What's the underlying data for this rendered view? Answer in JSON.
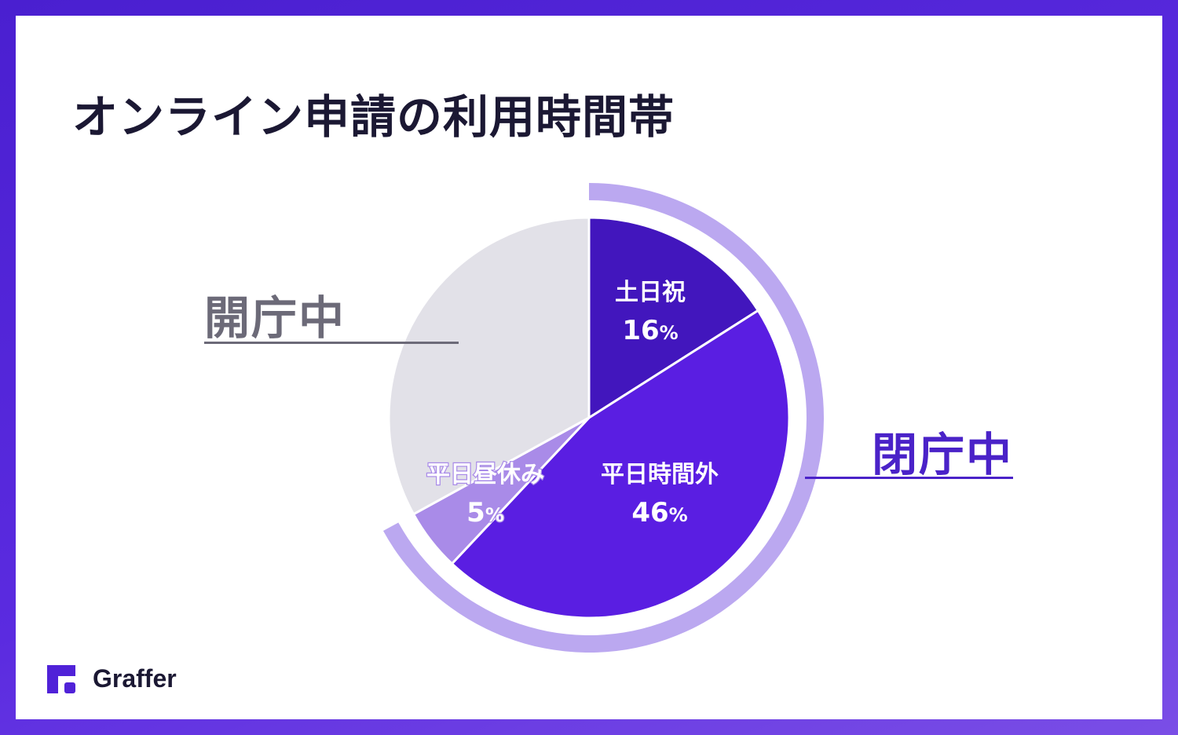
{
  "title": "オンライン申請の利用時間帯",
  "chart_data": {
    "type": "pie",
    "categories": [
      "土日祝",
      "平日時間外",
      "平日昼休み",
      "開庁中"
    ],
    "values": [
      16,
      46,
      5,
      33
    ],
    "value_labels": [
      "16",
      "46",
      "5",
      ""
    ],
    "unit": "%",
    "colors": [
      "#4216bd",
      "#5a1ee2",
      "#a98be8",
      "#e2e1e8"
    ],
    "groups": [
      {
        "label": "閉庁中",
        "categories": [
          "土日祝",
          "平日時間外",
          "平日昼休み"
        ],
        "ring_color": "#bba8f0",
        "text_color": "#4a22c8"
      },
      {
        "label": "開庁中",
        "categories": [
          "開庁中"
        ],
        "text_color": "#6c6a78"
      }
    ]
  },
  "brand": {
    "name": "Graffer",
    "icon": "graffer-logo-icon",
    "color": "#5022d8"
  }
}
